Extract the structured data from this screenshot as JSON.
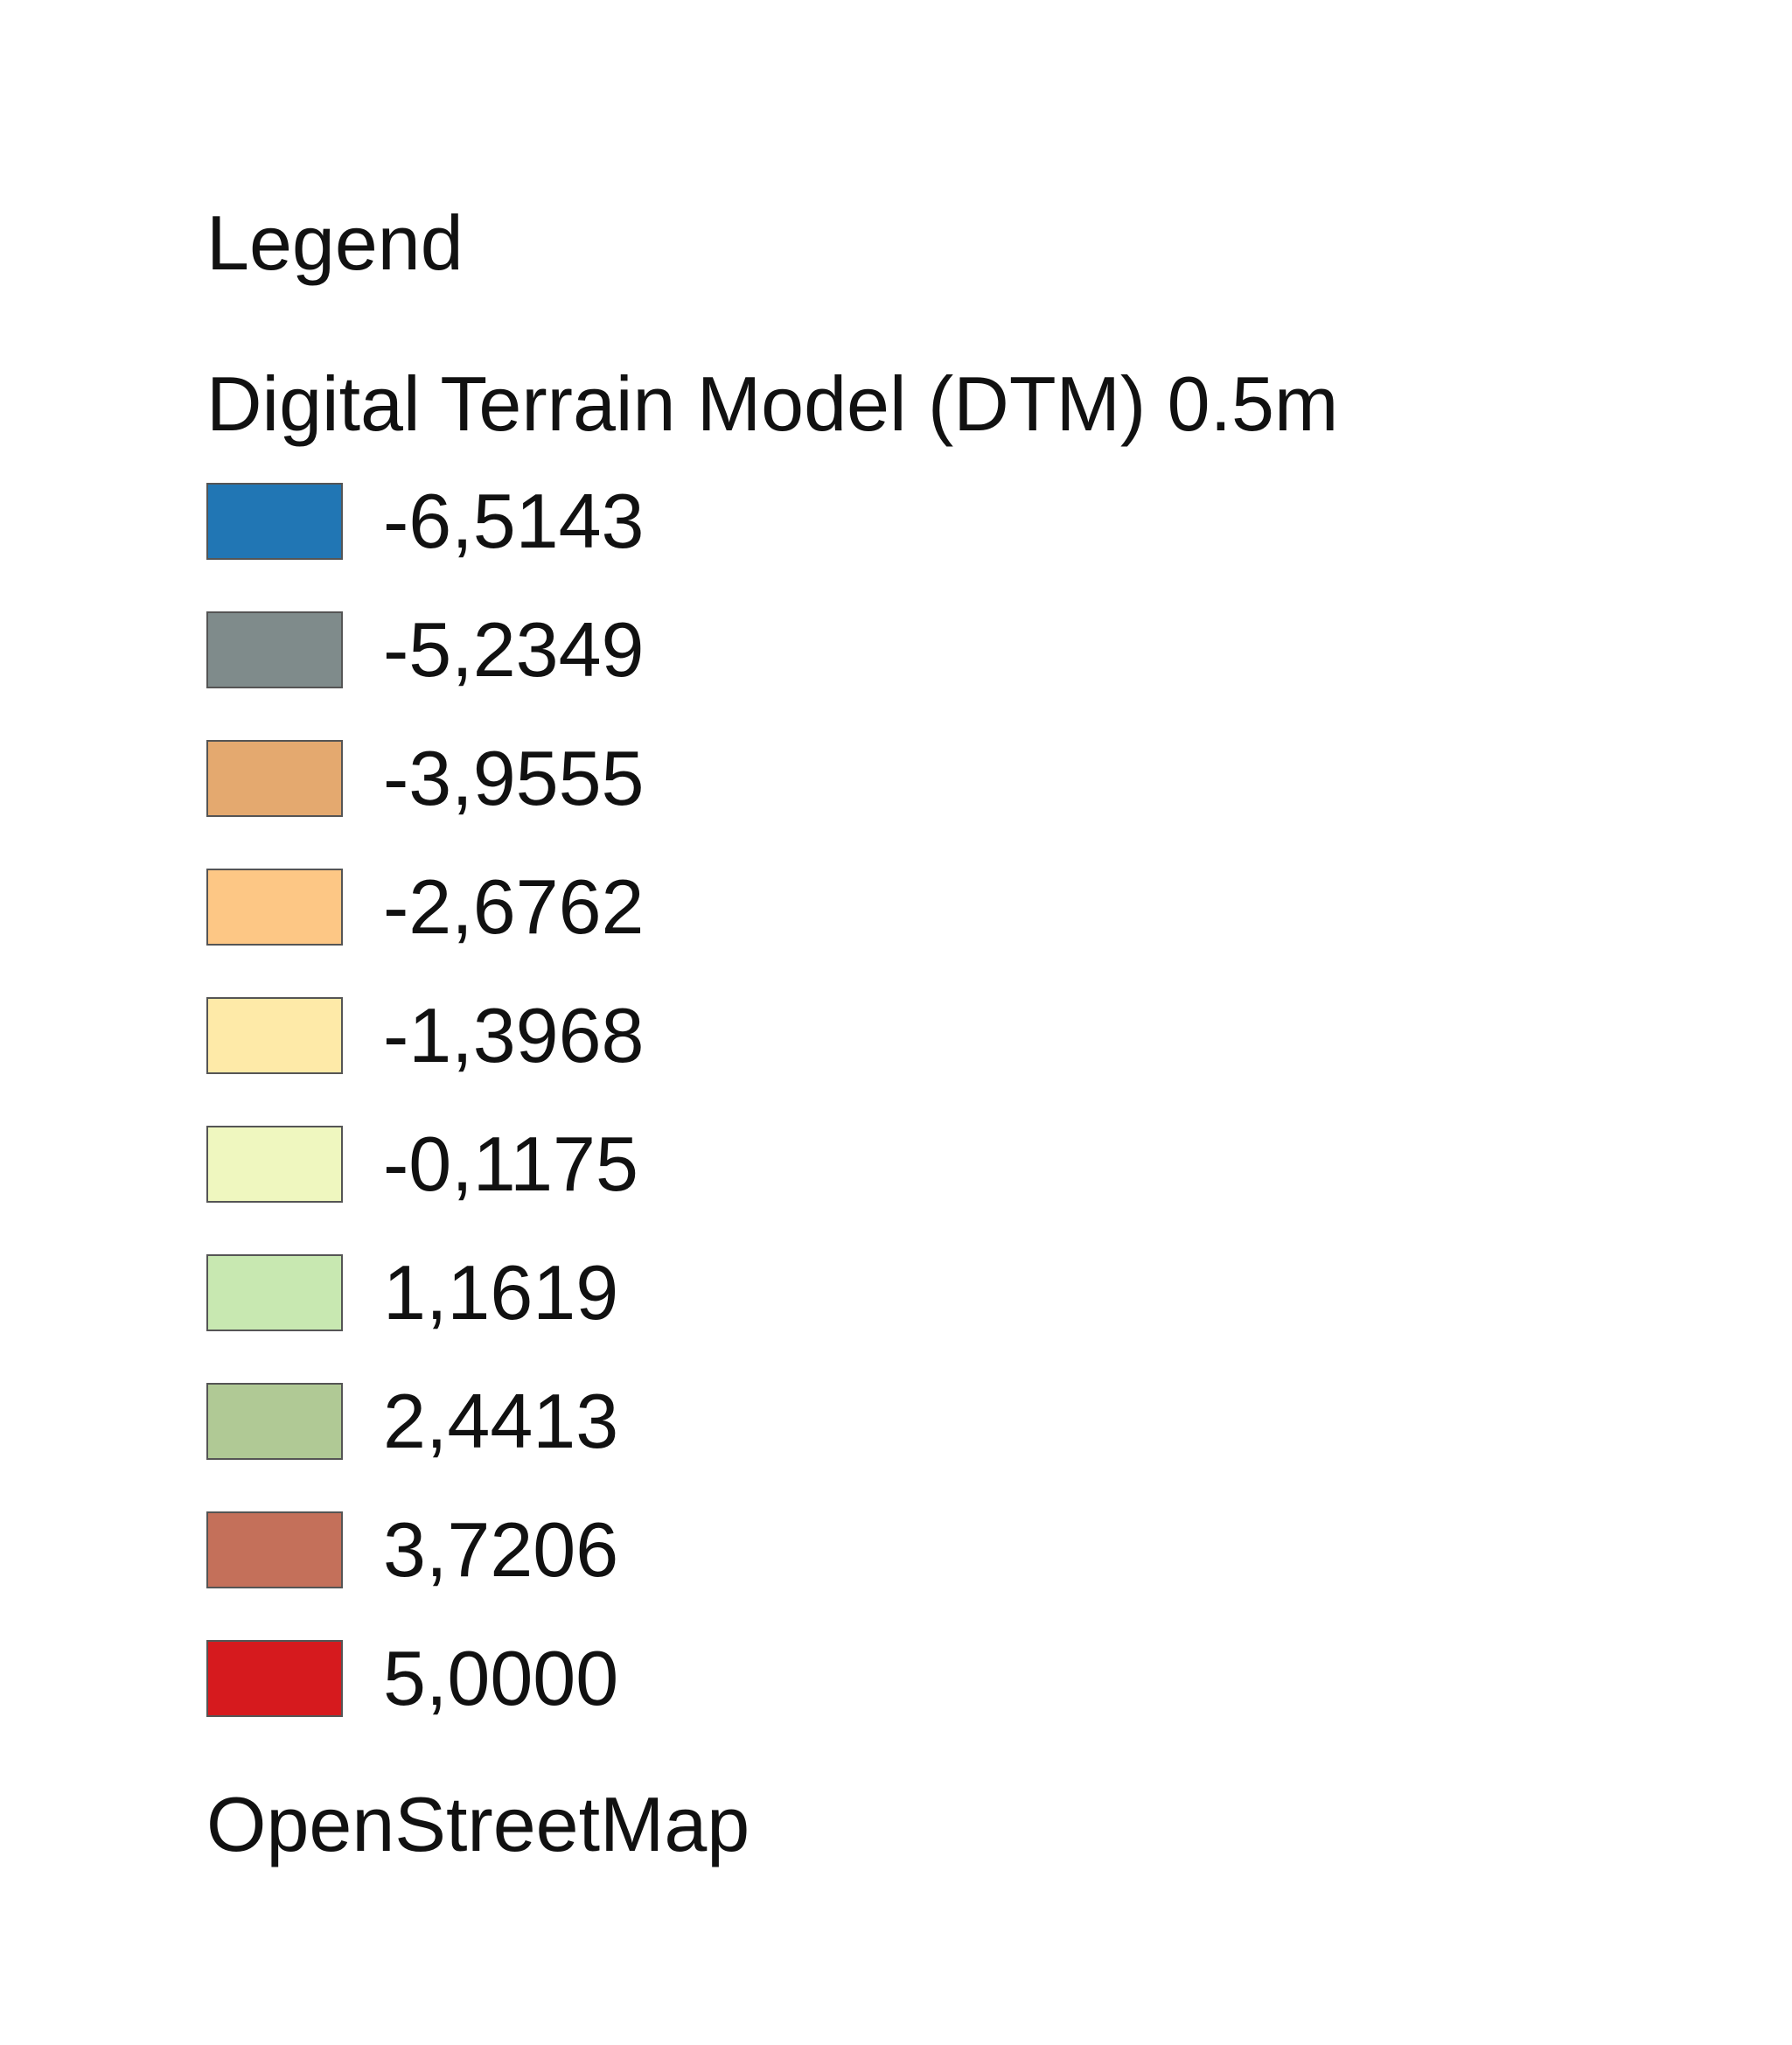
{
  "legend": {
    "title": "Legend",
    "layers": [
      {
        "title": "Digital Terrain Model (DTM) 0.5m",
        "classes": [
          {
            "value": "-6,5143",
            "color": "#2176b4"
          },
          {
            "value": "-5,2349",
            "color": "#7f8b8b"
          },
          {
            "value": "-3,9555",
            "color": "#e4a96f"
          },
          {
            "value": "-2,6762",
            "color": "#fdc785"
          },
          {
            "value": "-1,3968",
            "color": "#feeaa8"
          },
          {
            "value": "-0,1175",
            "color": "#eff7bf"
          },
          {
            "value": "1,1619",
            "color": "#c8e8b1"
          },
          {
            "value": "2,4413",
            "color": "#b0c995"
          },
          {
            "value": "3,7206",
            "color": "#c4705a"
          },
          {
            "value": "5,0000",
            "color": "#d61a1e"
          }
        ]
      },
      {
        "title": "OpenStreetMap"
      }
    ]
  }
}
